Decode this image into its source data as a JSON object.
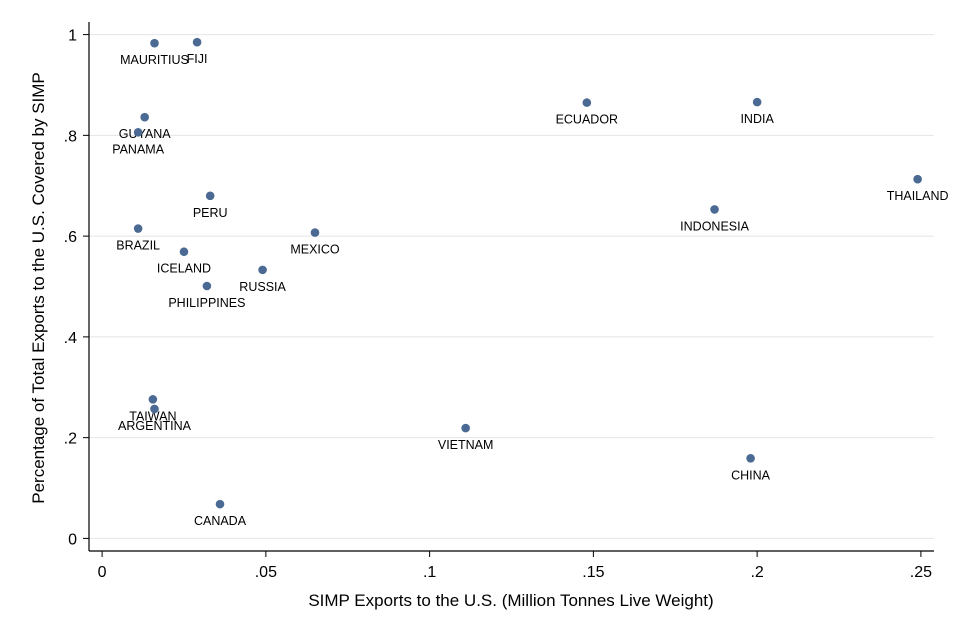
{
  "chart_data": {
    "type": "scatter",
    "title": "",
    "xlabel": "SIMP Exports to the U.S. (Million Tonnes Live Weight)",
    "ylabel": "Percentage of Total Exports to the U.S. Covered by SIMP",
    "xlim": [
      -0.004,
      0.254
    ],
    "ylim": [
      -0.025,
      1.025
    ],
    "x_ticks": [
      0,
      0.05,
      0.1,
      0.15,
      0.2,
      0.25
    ],
    "x_tick_labels": [
      "0",
      ".05",
      ".1",
      ".15",
      ".2",
      ".25"
    ],
    "y_ticks": [
      0,
      0.2,
      0.4,
      0.6,
      0.8,
      1
    ],
    "y_tick_labels": [
      "0",
      ".2",
      ".4",
      ".6",
      ".8",
      "1"
    ],
    "grid": true,
    "marker_color": "#4a6a94",
    "points": [
      {
        "label": "MAURITIUS",
        "x": 0.016,
        "y": 0.983
      },
      {
        "label": "FIJI",
        "x": 0.029,
        "y": 0.985
      },
      {
        "label": "GUYANA",
        "x": 0.013,
        "y": 0.836
      },
      {
        "label": "PANAMA",
        "x": 0.011,
        "y": 0.806
      },
      {
        "label": "ECUADOR",
        "x": 0.148,
        "y": 0.865
      },
      {
        "label": "INDIA",
        "x": 0.2,
        "y": 0.866
      },
      {
        "label": "THAILAND",
        "x": 0.249,
        "y": 0.713
      },
      {
        "label": "PERU",
        "x": 0.033,
        "y": 0.68
      },
      {
        "label": "INDONESIA",
        "x": 0.187,
        "y": 0.653
      },
      {
        "label": "BRAZIL",
        "x": 0.011,
        "y": 0.615
      },
      {
        "label": "MEXICO",
        "x": 0.065,
        "y": 0.607
      },
      {
        "label": "ICELAND",
        "x": 0.025,
        "y": 0.569
      },
      {
        "label": "RUSSIA",
        "x": 0.049,
        "y": 0.533
      },
      {
        "label": "PHILIPPINES",
        "x": 0.032,
        "y": 0.501
      },
      {
        "label": "TAIWAN",
        "x": 0.0155,
        "y": 0.276
      },
      {
        "label": "ARGENTINA",
        "x": 0.016,
        "y": 0.257
      },
      {
        "label": "VIETNAM",
        "x": 0.111,
        "y": 0.219
      },
      {
        "label": "CHINA",
        "x": 0.198,
        "y": 0.159
      },
      {
        "label": "CANADA",
        "x": 0.036,
        "y": 0.068
      }
    ]
  }
}
